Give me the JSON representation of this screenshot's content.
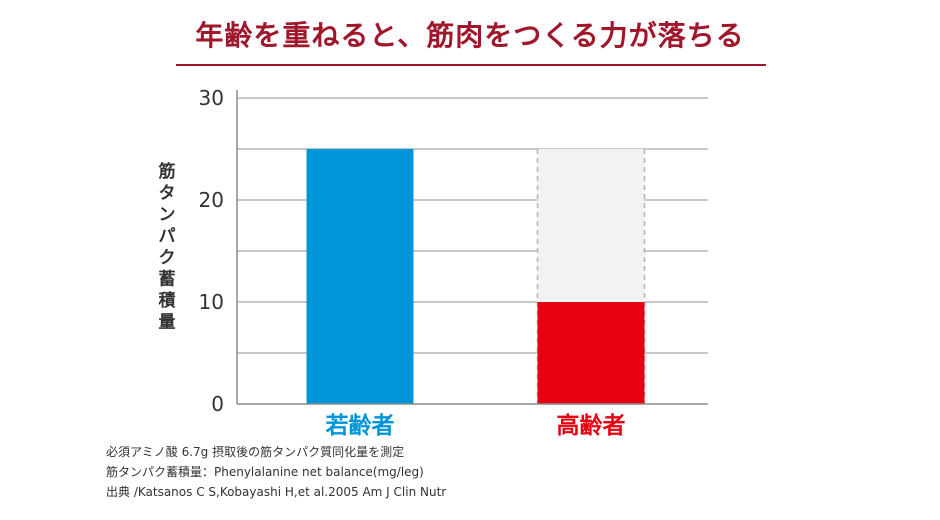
{
  "title": "年齢を重ねると、筋肉をつくる力が落ちる",
  "colors": {
    "title": "#a0162b",
    "rule": "#a0162b",
    "young": "#0095d9",
    "old": "#e60012",
    "ghost": "#f2f2f2",
    "grid": "#b5b5b5",
    "axis": "#8c8c8c",
    "text": "#333333"
  },
  "chart_data": {
    "type": "bar",
    "ylabel": "筋タンパク蓄積量",
    "ylim": [
      0,
      30
    ],
    "yticks": [
      "0",
      "10",
      "20",
      "30"
    ],
    "categories": [
      "若齢者",
      "高齢者"
    ],
    "values": [
      25,
      10
    ],
    "reference_value": 25,
    "grid": true
  },
  "notes": [
    "必須アミノ酸 6.7g 摂取後の筋タンパク質同化量を測定",
    "筋タンパク蓄積量：Phenylalanine net balance(mg/leg)",
    "出典 /Katsanos C S,Kobayashi H,et al.2005 Am J Clin Nutr"
  ]
}
